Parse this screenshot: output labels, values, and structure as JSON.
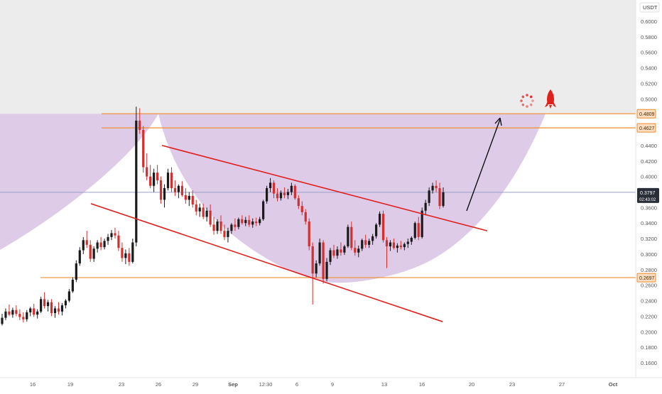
{
  "chart_data": {
    "type": "candlestick",
    "title": "",
    "currency_label": "USDT",
    "y_axis_ticks": [
      "0.6000",
      "0.5800",
      "0.5600",
      "0.5400",
      "0.5200",
      "0.5000",
      "0.4400",
      "0.4200",
      "0.4000",
      "0.3600",
      "0.3400",
      "0.3200",
      "0.3000",
      "0.2800",
      "0.2600",
      "0.2400",
      "0.2200",
      "0.2000",
      "0.1800",
      "0.1600"
    ],
    "y_range": [
      0.15,
      0.61
    ],
    "x_axis_ticks": [
      "16",
      "19",
      "23",
      "26",
      "29",
      "Sep",
      "12:30",
      "6",
      "9",
      "13",
      "16",
      "20",
      "23",
      "27",
      "Oct"
    ],
    "levels": [
      {
        "label": "0.4809",
        "price": 0.4809,
        "color": "#f08c2a"
      },
      {
        "label": "0.4627",
        "price": 0.4627,
        "color": "#f08c2a"
      },
      {
        "label": "0.2697",
        "price": 0.2697,
        "color": "#f08c2a"
      }
    ],
    "current_price": {
      "label": "0.3797",
      "countdown": "02:43:02",
      "price": 0.3797,
      "color": "#2a2e39"
    },
    "channel_color": "#e0201c",
    "arc_fill": "#c8a8d8",
    "arrow_color": "#000000",
    "candles": [
      [
        0.21,
        0.223,
        0.208,
        0.218
      ],
      [
        0.218,
        0.23,
        0.215,
        0.226
      ],
      [
        0.226,
        0.235,
        0.22,
        0.222
      ],
      [
        0.222,
        0.231,
        0.218,
        0.228
      ],
      [
        0.228,
        0.234,
        0.22,
        0.223
      ],
      [
        0.223,
        0.229,
        0.215,
        0.219
      ],
      [
        0.219,
        0.225,
        0.212,
        0.216
      ],
      [
        0.216,
        0.228,
        0.213,
        0.225
      ],
      [
        0.225,
        0.232,
        0.22,
        0.23
      ],
      [
        0.23,
        0.236,
        0.219,
        0.222
      ],
      [
        0.222,
        0.229,
        0.217,
        0.226
      ],
      [
        0.226,
        0.245,
        0.224,
        0.242
      ],
      [
        0.242,
        0.251,
        0.23,
        0.233
      ],
      [
        0.233,
        0.241,
        0.226,
        0.238
      ],
      [
        0.238,
        0.242,
        0.22,
        0.224
      ],
      [
        0.224,
        0.233,
        0.218,
        0.23
      ],
      [
        0.23,
        0.238,
        0.222,
        0.226
      ],
      [
        0.226,
        0.237,
        0.221,
        0.234
      ],
      [
        0.234,
        0.242,
        0.23,
        0.24
      ],
      [
        0.24,
        0.255,
        0.238,
        0.252
      ],
      [
        0.252,
        0.27,
        0.25,
        0.267
      ],
      [
        0.267,
        0.292,
        0.264,
        0.288
      ],
      [
        0.288,
        0.309,
        0.285,
        0.305
      ],
      [
        0.305,
        0.322,
        0.3,
        0.318
      ],
      [
        0.318,
        0.33,
        0.308,
        0.312
      ],
      [
        0.312,
        0.318,
        0.29,
        0.294
      ],
      [
        0.294,
        0.31,
        0.29,
        0.307
      ],
      [
        0.307,
        0.318,
        0.302,
        0.315
      ],
      [
        0.315,
        0.322,
        0.305,
        0.309
      ],
      [
        0.309,
        0.32,
        0.306,
        0.317
      ],
      [
        0.317,
        0.326,
        0.312,
        0.322
      ],
      [
        0.322,
        0.331,
        0.318,
        0.327
      ],
      [
        0.327,
        0.334,
        0.32,
        0.324
      ],
      [
        0.324,
        0.33,
        0.304,
        0.308
      ],
      [
        0.308,
        0.315,
        0.29,
        0.295
      ],
      [
        0.295,
        0.306,
        0.287,
        0.301
      ],
      [
        0.301,
        0.308,
        0.285,
        0.29
      ],
      [
        0.29,
        0.32,
        0.288,
        0.315
      ],
      [
        0.315,
        0.49,
        0.31,
        0.472
      ],
      [
        0.472,
        0.488,
        0.455,
        0.46
      ],
      [
        0.46,
        0.465,
        0.405,
        0.412
      ],
      [
        0.412,
        0.43,
        0.395,
        0.4
      ],
      [
        0.4,
        0.415,
        0.385,
        0.388
      ],
      [
        0.388,
        0.41,
        0.38,
        0.405
      ],
      [
        0.405,
        0.415,
        0.39,
        0.395
      ],
      [
        0.395,
        0.4,
        0.365,
        0.37
      ],
      [
        0.37,
        0.39,
        0.36,
        0.385
      ],
      [
        0.385,
        0.41,
        0.382,
        0.405
      ],
      [
        0.405,
        0.412,
        0.38,
        0.385
      ],
      [
        0.385,
        0.395,
        0.375,
        0.38
      ],
      [
        0.38,
        0.39,
        0.372,
        0.388
      ],
      [
        0.388,
        0.394,
        0.374,
        0.376
      ],
      [
        0.376,
        0.385,
        0.365,
        0.37
      ],
      [
        0.37,
        0.38,
        0.362,
        0.375
      ],
      [
        0.375,
        0.382,
        0.36,
        0.364
      ],
      [
        0.364,
        0.37,
        0.35,
        0.355
      ],
      [
        0.355,
        0.365,
        0.348,
        0.36
      ],
      [
        0.36,
        0.365,
        0.345,
        0.348
      ],
      [
        0.348,
        0.36,
        0.342,
        0.356
      ],
      [
        0.356,
        0.364,
        0.335,
        0.338
      ],
      [
        0.338,
        0.348,
        0.325,
        0.33
      ],
      [
        0.33,
        0.345,
        0.326,
        0.342
      ],
      [
        0.342,
        0.35,
        0.326,
        0.33
      ],
      [
        0.33,
        0.338,
        0.318,
        0.322
      ],
      [
        0.322,
        0.334,
        0.315,
        0.33
      ],
      [
        0.33,
        0.34,
        0.326,
        0.338
      ],
      [
        0.338,
        0.346,
        0.33,
        0.335
      ],
      [
        0.335,
        0.347,
        0.332,
        0.345
      ],
      [
        0.345,
        0.35,
        0.338,
        0.34
      ],
      [
        0.34,
        0.348,
        0.336,
        0.344
      ],
      [
        0.344,
        0.35,
        0.335,
        0.338
      ],
      [
        0.338,
        0.346,
        0.334,
        0.342
      ],
      [
        0.342,
        0.347,
        0.336,
        0.34
      ],
      [
        0.34,
        0.348,
        0.337,
        0.345
      ],
      [
        0.345,
        0.37,
        0.343,
        0.368
      ],
      [
        0.368,
        0.388,
        0.365,
        0.385
      ],
      [
        0.385,
        0.398,
        0.38,
        0.392
      ],
      [
        0.392,
        0.395,
        0.372,
        0.378
      ],
      [
        0.378,
        0.385,
        0.368,
        0.372
      ],
      [
        0.372,
        0.382,
        0.369,
        0.379
      ],
      [
        0.379,
        0.386,
        0.372,
        0.376
      ],
      [
        0.376,
        0.384,
        0.371,
        0.38
      ],
      [
        0.38,
        0.392,
        0.376,
        0.388
      ],
      [
        0.388,
        0.39,
        0.37,
        0.372
      ],
      [
        0.372,
        0.376,
        0.358,
        0.362
      ],
      [
        0.362,
        0.368,
        0.35,
        0.354
      ],
      [
        0.354,
        0.358,
        0.338,
        0.342
      ],
      [
        0.342,
        0.346,
        0.305,
        0.31
      ],
      [
        0.31,
        0.315,
        0.235,
        0.275
      ],
      [
        0.275,
        0.292,
        0.27,
        0.288
      ],
      [
        0.288,
        0.32,
        0.285,
        0.315
      ],
      [
        0.315,
        0.318,
        0.262,
        0.268
      ],
      [
        0.268,
        0.295,
        0.265,
        0.29
      ],
      [
        0.29,
        0.308,
        0.286,
        0.305
      ],
      [
        0.305,
        0.312,
        0.295,
        0.298
      ],
      [
        0.298,
        0.31,
        0.294,
        0.306
      ],
      [
        0.306,
        0.315,
        0.298,
        0.302
      ],
      [
        0.302,
        0.312,
        0.299,
        0.31
      ],
      [
        0.31,
        0.338,
        0.308,
        0.335
      ],
      [
        0.335,
        0.342,
        0.305,
        0.308
      ],
      [
        0.308,
        0.318,
        0.298,
        0.302
      ],
      [
        0.302,
        0.311,
        0.296,
        0.307
      ],
      [
        0.307,
        0.32,
        0.304,
        0.318
      ],
      [
        0.318,
        0.325,
        0.308,
        0.312
      ],
      [
        0.312,
        0.32,
        0.308,
        0.317
      ],
      [
        0.317,
        0.326,
        0.312,
        0.323
      ],
      [
        0.323,
        0.34,
        0.32,
        0.338
      ],
      [
        0.338,
        0.355,
        0.335,
        0.352
      ],
      [
        0.352,
        0.356,
        0.315,
        0.318
      ],
      [
        0.318,
        0.322,
        0.282,
        0.31
      ],
      [
        0.31,
        0.318,
        0.304,
        0.315
      ],
      [
        0.315,
        0.32,
        0.306,
        0.308
      ],
      [
        0.308,
        0.314,
        0.302,
        0.311
      ],
      [
        0.311,
        0.317,
        0.306,
        0.309
      ],
      [
        0.309,
        0.315,
        0.305,
        0.313
      ],
      [
        0.313,
        0.32,
        0.308,
        0.316
      ],
      [
        0.316,
        0.323,
        0.312,
        0.321
      ],
      [
        0.321,
        0.342,
        0.319,
        0.34
      ],
      [
        0.34,
        0.348,
        0.318,
        0.322
      ],
      [
        0.322,
        0.36,
        0.32,
        0.356
      ],
      [
        0.356,
        0.37,
        0.35,
        0.366
      ],
      [
        0.366,
        0.386,
        0.362,
        0.382
      ],
      [
        0.382,
        0.392,
        0.378,
        0.388
      ],
      [
        0.388,
        0.395,
        0.38,
        0.385
      ],
      [
        0.385,
        0.392,
        0.358,
        0.362
      ],
      [
        0.362,
        0.386,
        0.36,
        0.3797
      ]
    ]
  },
  "icons": {
    "spinner": "loading-icon",
    "rocket": "rocket-icon"
  }
}
